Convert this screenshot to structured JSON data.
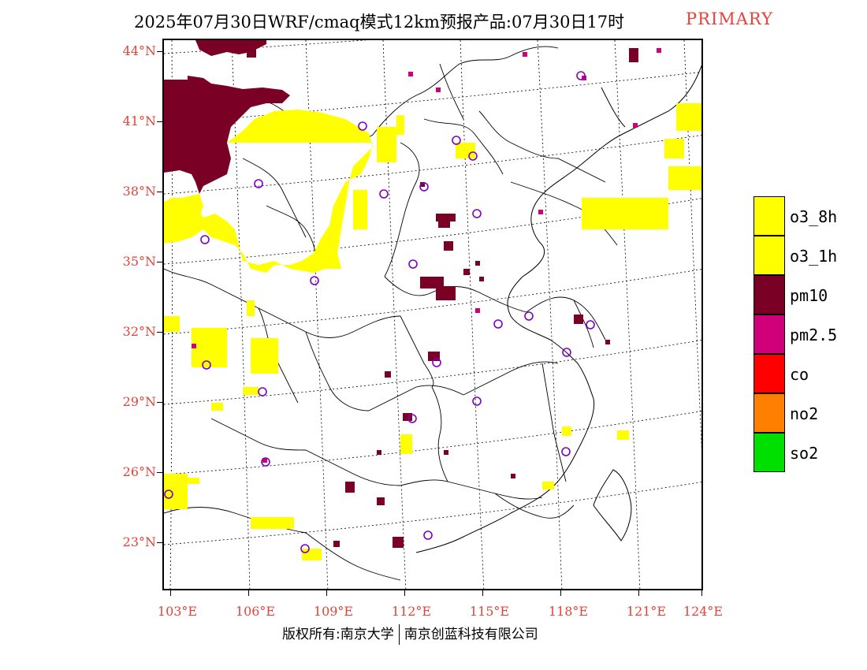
{
  "title": "2025年07月30日WRF/cmaq模式12km预报产品:07月30日17时",
  "title_tag": "PRIMARY",
  "axes": {
    "lat_labels": [
      "44°N",
      "41°N",
      "38°N",
      "35°N",
      "32°N",
      "29°N",
      "26°N",
      "23°N"
    ],
    "lon_labels": [
      "103°E",
      "106°E",
      "109°E",
      "112°E",
      "115°E",
      "118°E",
      "121°E",
      "124°E"
    ]
  },
  "legend": [
    {
      "label": "o3_8h",
      "color": "#ffff00"
    },
    {
      "label": "o3_1h",
      "color": "#ffff00"
    },
    {
      "label": "pm10",
      "color": "#7a0026"
    },
    {
      "label": "pm2.5",
      "color": "#d0007a"
    },
    {
      "label": "co",
      "color": "#ff0000"
    },
    {
      "label": "no2",
      "color": "#ff8000"
    },
    {
      "label": "so2",
      "color": "#00e000"
    }
  ],
  "footer": {
    "left": "版权所有:南京大学",
    "right": "南京创蓝科技有限公司"
  },
  "colors": {
    "label_red": "#e0453a",
    "o3": "#ffff00",
    "pm10": "#7a0026",
    "pm25": "#d0007a",
    "station_marker": "#8000c0"
  }
}
